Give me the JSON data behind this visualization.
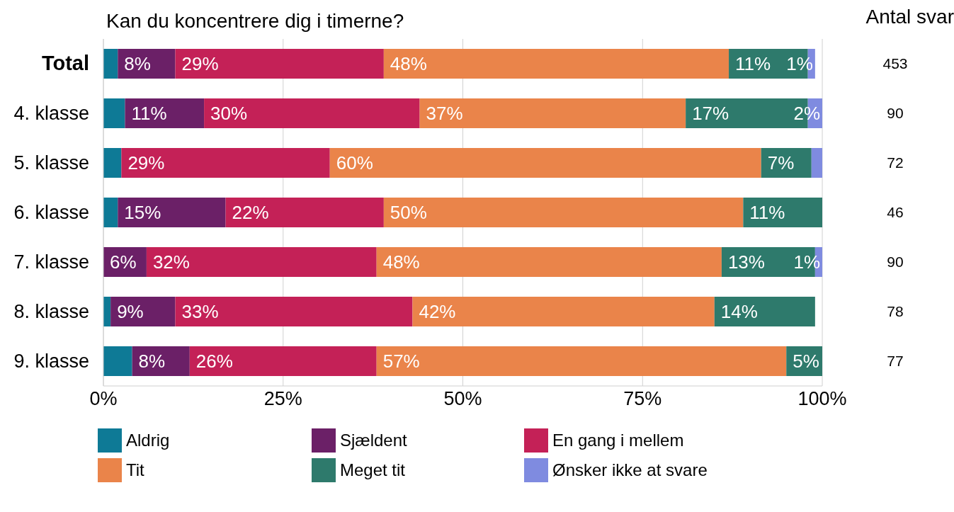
{
  "chart_data": {
    "type": "bar",
    "orientation": "horizontal",
    "stacked": true,
    "title": "Kan du koncentrere dig i timerne?",
    "y2label": "Antal svar",
    "categories": [
      "Total",
      "4. klasse",
      "5. klasse",
      "6. klasse",
      "7. klasse",
      "8. klasse",
      "9. klasse"
    ],
    "series": [
      {
        "name": "Aldrig",
        "color": "#0e7a96",
        "values": [
          2,
          3,
          2.5,
          2,
          0,
          1,
          4
        ],
        "value_labels": [
          null,
          null,
          null,
          null,
          null,
          null,
          null
        ]
      },
      {
        "name": "Sjældent",
        "color": "#6b2067",
        "values": [
          8,
          11,
          0,
          15,
          6,
          9,
          8
        ],
        "value_labels": [
          "8%",
          "11%",
          null,
          "15%",
          "6%",
          "9%",
          "8%"
        ]
      },
      {
        "name": "En gang i mellem",
        "color": "#c42157",
        "values": [
          29,
          30,
          29,
          22,
          32,
          33,
          26
        ],
        "value_labels": [
          "29%",
          "30%",
          "29%",
          "22%",
          "32%",
          "33%",
          "26%"
        ]
      },
      {
        "name": "Tit",
        "color": "#ea844a",
        "values": [
          48,
          37,
          60,
          50,
          48,
          42,
          57
        ],
        "value_labels": [
          "48%",
          "37%",
          "60%",
          "50%",
          "48%",
          "42%",
          "57%"
        ]
      },
      {
        "name": "Meget tit",
        "color": "#2e7a6c",
        "values": [
          11,
          17,
          7,
          11,
          13,
          14,
          5
        ],
        "value_labels": [
          "11%",
          "17%",
          "7%",
          "11%",
          "13%",
          "14%",
          "5%"
        ]
      },
      {
        "name": "Ønsker ikke at svare",
        "color": "#7f8be0",
        "values": [
          1,
          2,
          1.5,
          0,
          1,
          0,
          0
        ],
        "value_labels": [
          "1%",
          "2%",
          null,
          null,
          "1%",
          null,
          null
        ]
      }
    ],
    "annotations": [
      "453",
      "90",
      "72",
      "46",
      "90",
      "78",
      "77"
    ],
    "xlim": [
      0,
      100
    ],
    "xticks": [
      {
        "value": 0,
        "label": "0%"
      },
      {
        "value": 25,
        "label": "25%"
      },
      {
        "value": 50,
        "label": "50%"
      },
      {
        "value": 75,
        "label": "75%"
      },
      {
        "value": 100,
        "label": "100%"
      }
    ],
    "grid": "x",
    "legend": "bottom"
  }
}
